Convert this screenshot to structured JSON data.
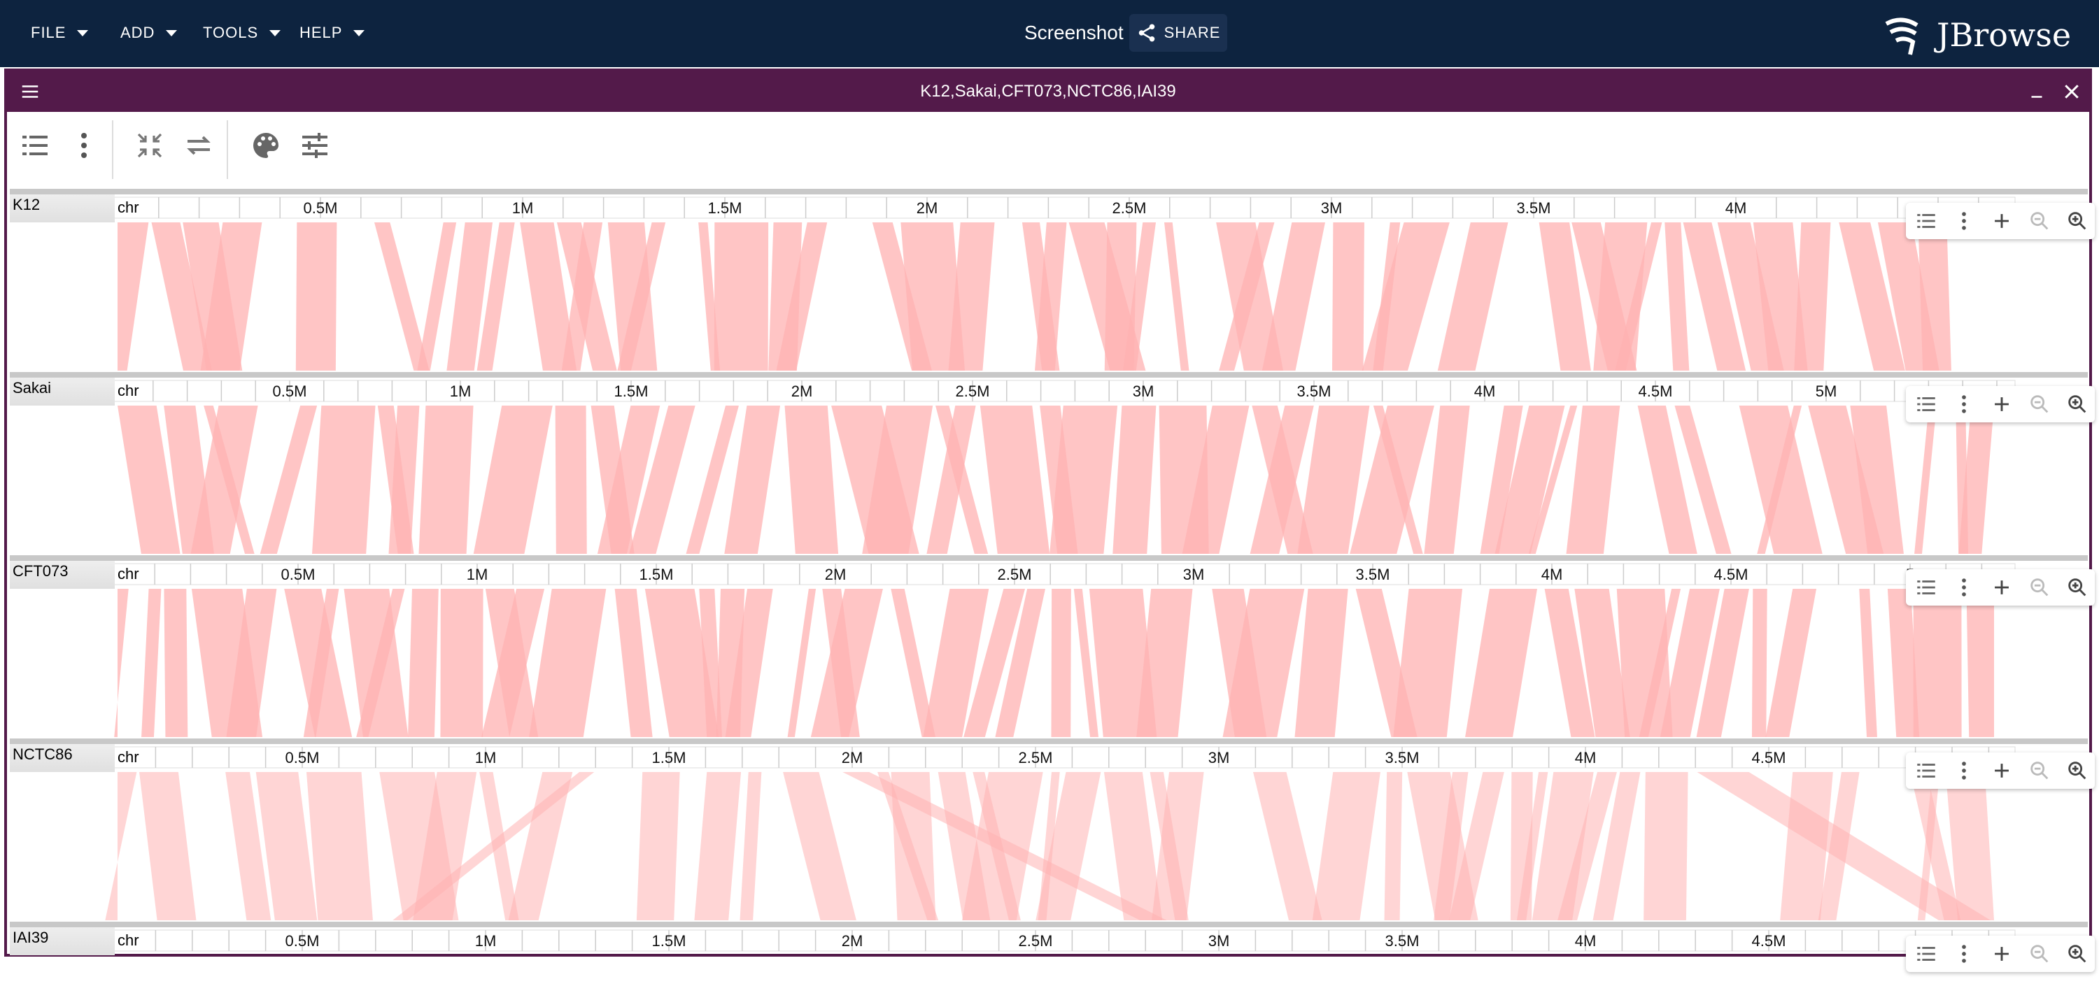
{
  "appbar": {
    "menus": [
      {
        "label": "FILE"
      },
      {
        "label": "ADD"
      },
      {
        "label": "TOOLS"
      },
      {
        "label": "HELP"
      }
    ],
    "session_title": "Screenshot",
    "share_label": "SHARE",
    "logo_text": "JBrowse"
  },
  "view": {
    "title": "K12,Sakai,CFT073,NCTC86,IAI39",
    "toolbar_icons": [
      "track-list-icon",
      "more-vertical-icon",
      "collapse-icon",
      "swap-icon",
      "palette-icon",
      "tune-icon"
    ]
  },
  "genomes": [
    {
      "name": "K12",
      "refname": "chr",
      "ticks": [
        "0.5M",
        "1M",
        "1.5M",
        "2M",
        "2.5M",
        "3M",
        "3.5M",
        "4M"
      ]
    },
    {
      "name": "Sakai",
      "refname": "chr",
      "ticks": [
        "0.5M",
        "1M",
        "1.5M",
        "2M",
        "2.5M",
        "3M",
        "3.5M",
        "4M",
        "4.5M",
        "5M"
      ]
    },
    {
      "name": "CFT073",
      "refname": "chr",
      "ticks": [
        "0.5M",
        "1M",
        "1.5M",
        "2M",
        "2.5M",
        "3M",
        "3.5M",
        "4M",
        "4.5M",
        "5"
      ]
    },
    {
      "name": "NCTC86",
      "refname": "chr",
      "ticks": [
        "0.5M",
        "1M",
        "1.5M",
        "2M",
        "2.5M",
        "3M",
        "3.5M",
        "4M",
        "4.5M"
      ]
    },
    {
      "name": "IAI39",
      "refname": "chr",
      "ticks": [
        "0.5M",
        "1M",
        "1.5M",
        "2M",
        "2.5M",
        "3M",
        "3.5M",
        "4M",
        "4.5M"
      ]
    }
  ],
  "track_controls": [
    "track-list-icon",
    "more-vertical-icon",
    "add-icon",
    "zoom-out-icon",
    "zoom-in-icon"
  ],
  "colors": {
    "appbar": "#0d233f",
    "view_border": "#531a4a",
    "synteny_fill": "#ffb2b2"
  }
}
